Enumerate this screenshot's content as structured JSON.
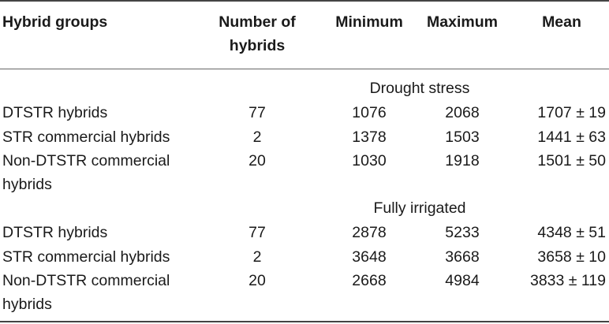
{
  "headers": {
    "group": "Hybrid groups",
    "number_line1": "Number of",
    "number_line2": "hybrids",
    "minimum": "Minimum",
    "maximum": "Maximum",
    "mean": "Mean"
  },
  "sections": [
    {
      "title": "Drought stress",
      "rows": [
        {
          "group": "DTSTR hybrids",
          "group_line2": "",
          "number": "77",
          "minimum": "1076",
          "maximum": "2068",
          "mean": "1707 ± 19"
        },
        {
          "group": "STR commercial hybrids",
          "group_line2": "",
          "number": "2",
          "minimum": "1378",
          "maximum": "1503",
          "mean": "1441 ± 63"
        },
        {
          "group": "Non-DTSTR commercial",
          "group_line2": "hybrids",
          "number": "20",
          "minimum": "1030",
          "maximum": "1918",
          "mean": "1501 ± 50"
        }
      ]
    },
    {
      "title": "Fully irrigated",
      "rows": [
        {
          "group": "DTSTR hybrids",
          "group_line2": "",
          "number": "77",
          "minimum": "2878",
          "maximum": "5233",
          "mean": "4348 ± 51"
        },
        {
          "group": "STR commercial hybrids",
          "group_line2": "",
          "number": "2",
          "minimum": "3648",
          "maximum": "3668",
          "mean": "3658 ± 10"
        },
        {
          "group": "Non-DTSTR commercial",
          "group_line2": "hybrids",
          "number": "20",
          "minimum": "2668",
          "maximum": "4984",
          "mean": "3833 ± 119"
        }
      ]
    }
  ]
}
